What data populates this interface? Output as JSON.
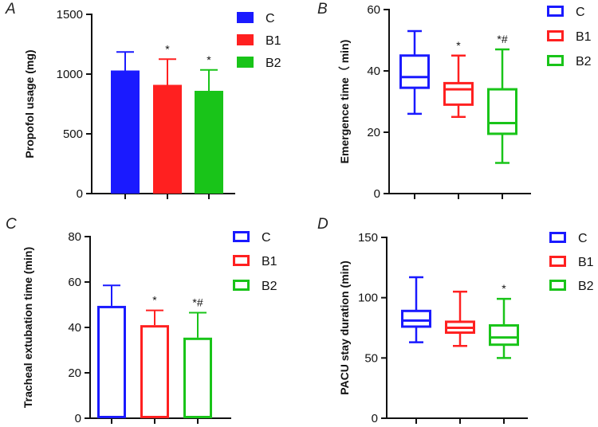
{
  "chart_data": [
    {
      "panel": "A",
      "type": "bar",
      "style": "filled",
      "ylabel": "Propofol usage (mg)",
      "ylim": [
        0,
        1500
      ],
      "yticks": [
        0,
        500,
        1000,
        1500
      ],
      "categories": [
        "C",
        "B1",
        "B2"
      ],
      "values": [
        1030,
        910,
        860
      ],
      "error_upper": [
        1185,
        1125,
        1035
      ],
      "annotations": [
        "",
        "*",
        "*"
      ],
      "colors": [
        "#1a1aff",
        "#ff2020",
        "#19c419"
      ],
      "legend": [
        "C",
        "B1",
        "B2"
      ],
      "legend_position": "top-right"
    },
    {
      "panel": "B",
      "type": "box",
      "ylabel": "Emergence time（ min)",
      "ylim": [
        0,
        60
      ],
      "yticks": [
        0,
        20,
        40,
        60
      ],
      "categories": [
        "C",
        "B1",
        "B2"
      ],
      "boxes": [
        {
          "min": 26,
          "q1": 34.5,
          "median": 38,
          "q3": 45,
          "max": 53
        },
        {
          "min": 25,
          "q1": 29,
          "median": 34,
          "q3": 36,
          "max": 45
        },
        {
          "min": 10,
          "q1": 19.5,
          "median": 23,
          "q3": 34,
          "max": 47
        }
      ],
      "annotations": [
        "",
        "*",
        "*#"
      ],
      "colors": [
        "#1a1aff",
        "#ff2020",
        "#19c419"
      ],
      "legend": [
        "C",
        "B1",
        "B2"
      ],
      "legend_position": "top-right"
    },
    {
      "panel": "C",
      "type": "bar",
      "style": "hollow",
      "ylabel": "Tracheal extubation time (min)",
      "ylim": [
        0,
        80
      ],
      "yticks": [
        0,
        20,
        40,
        60,
        80
      ],
      "categories": [
        "C",
        "B1",
        "B2"
      ],
      "values": [
        49.5,
        41,
        35.5
      ],
      "error_upper": [
        58.5,
        47.5,
        46.5
      ],
      "annotations": [
        "",
        "*",
        "*#"
      ],
      "colors": [
        "#1a1aff",
        "#ff2020",
        "#19c419"
      ],
      "legend": [
        "C",
        "B1",
        "B2"
      ],
      "legend_position": "top-right"
    },
    {
      "panel": "D",
      "type": "box",
      "ylabel": "PACU stay duration (min)",
      "ylim": [
        0,
        150
      ],
      "yticks": [
        0,
        50,
        100,
        150
      ],
      "categories": [
        "C",
        "B1",
        "B2"
      ],
      "boxes": [
        {
          "min": 63,
          "q1": 76,
          "median": 81,
          "q3": 89,
          "max": 117
        },
        {
          "min": 60,
          "q1": 71,
          "median": 75,
          "q3": 80,
          "max": 105
        },
        {
          "min": 50,
          "q1": 61,
          "median": 67,
          "q3": 77,
          "max": 99
        }
      ],
      "annotations": [
        "",
        "",
        "*"
      ],
      "colors": [
        "#1a1aff",
        "#ff2020",
        "#19c419"
      ],
      "legend": [
        "C",
        "B1",
        "B2"
      ],
      "legend_position": "top-right"
    }
  ]
}
